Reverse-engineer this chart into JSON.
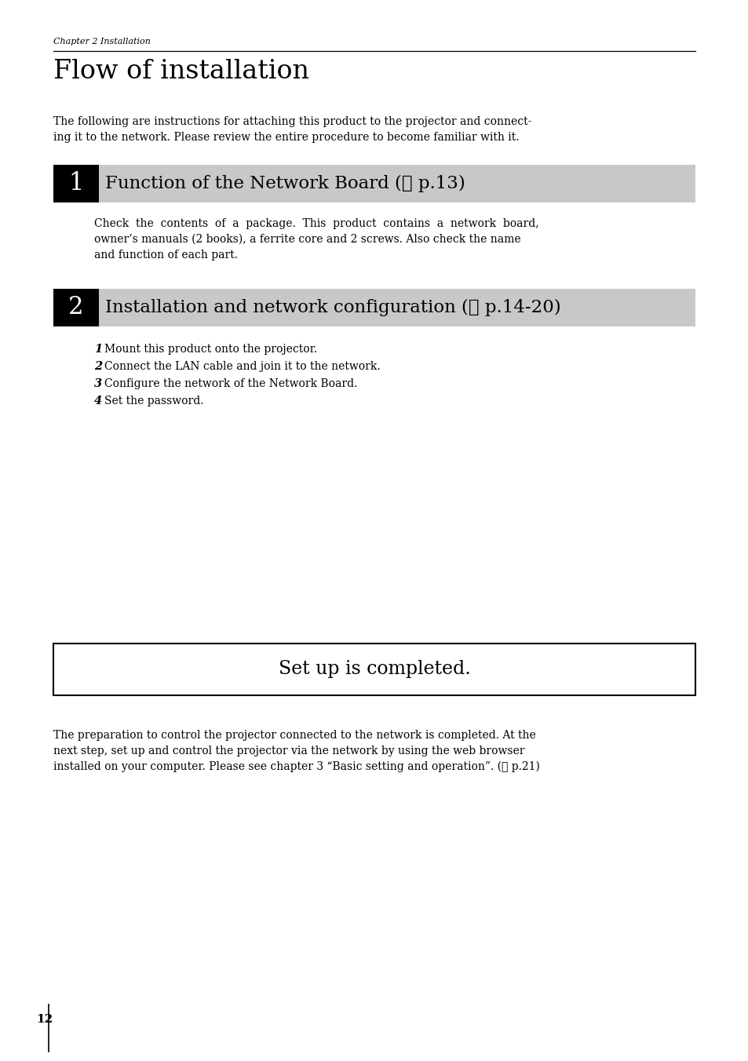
{
  "page_bg": "#ffffff",
  "chapter_label": "Chapter 2 Installation",
  "title": "Flow of installation",
  "intro_text": "The following are instructions for attaching this product to the projector and connect-\ning it to the network. Please review the entire procedure to become familiar with it.",
  "section1_num": "1",
  "section1_title": "Function of the Network Board (☞ p.13)",
  "section2_num": "2",
  "section2_title": "Installation and network configuration (☞ p.14-20)",
  "section1_body_lines": [
    "Check  the  contents  of  a  package.  This  product  contains  a  network  board,",
    "owner’s manuals (2 books), a ferrite core and 2 screws. Also check the name",
    "and function of each part."
  ],
  "section2_items": [
    {
      "num": "1",
      "text": "Mount this product onto the projector."
    },
    {
      "num": "2",
      "text": "Connect the LAN cable and join it to the network."
    },
    {
      "num": "3",
      "text": "Configure the network of the Network Board."
    },
    {
      "num": "4",
      "text": "Set the password."
    }
  ],
  "completed_text": "Set up is completed.",
  "footer_text_lines": [
    "The preparation to control the projector connected to the network is completed. At the",
    "next step, set up and control the projector via the network by using the web browser",
    "installed on your computer. Please see chapter 3 “Basic setting and operation”. (☞ p.21)"
  ],
  "page_number": "12",
  "black_box_color": "#000000",
  "gray_box_color": "#c8c8c8",
  "text_color": "#000000",
  "white_color": "#ffffff"
}
